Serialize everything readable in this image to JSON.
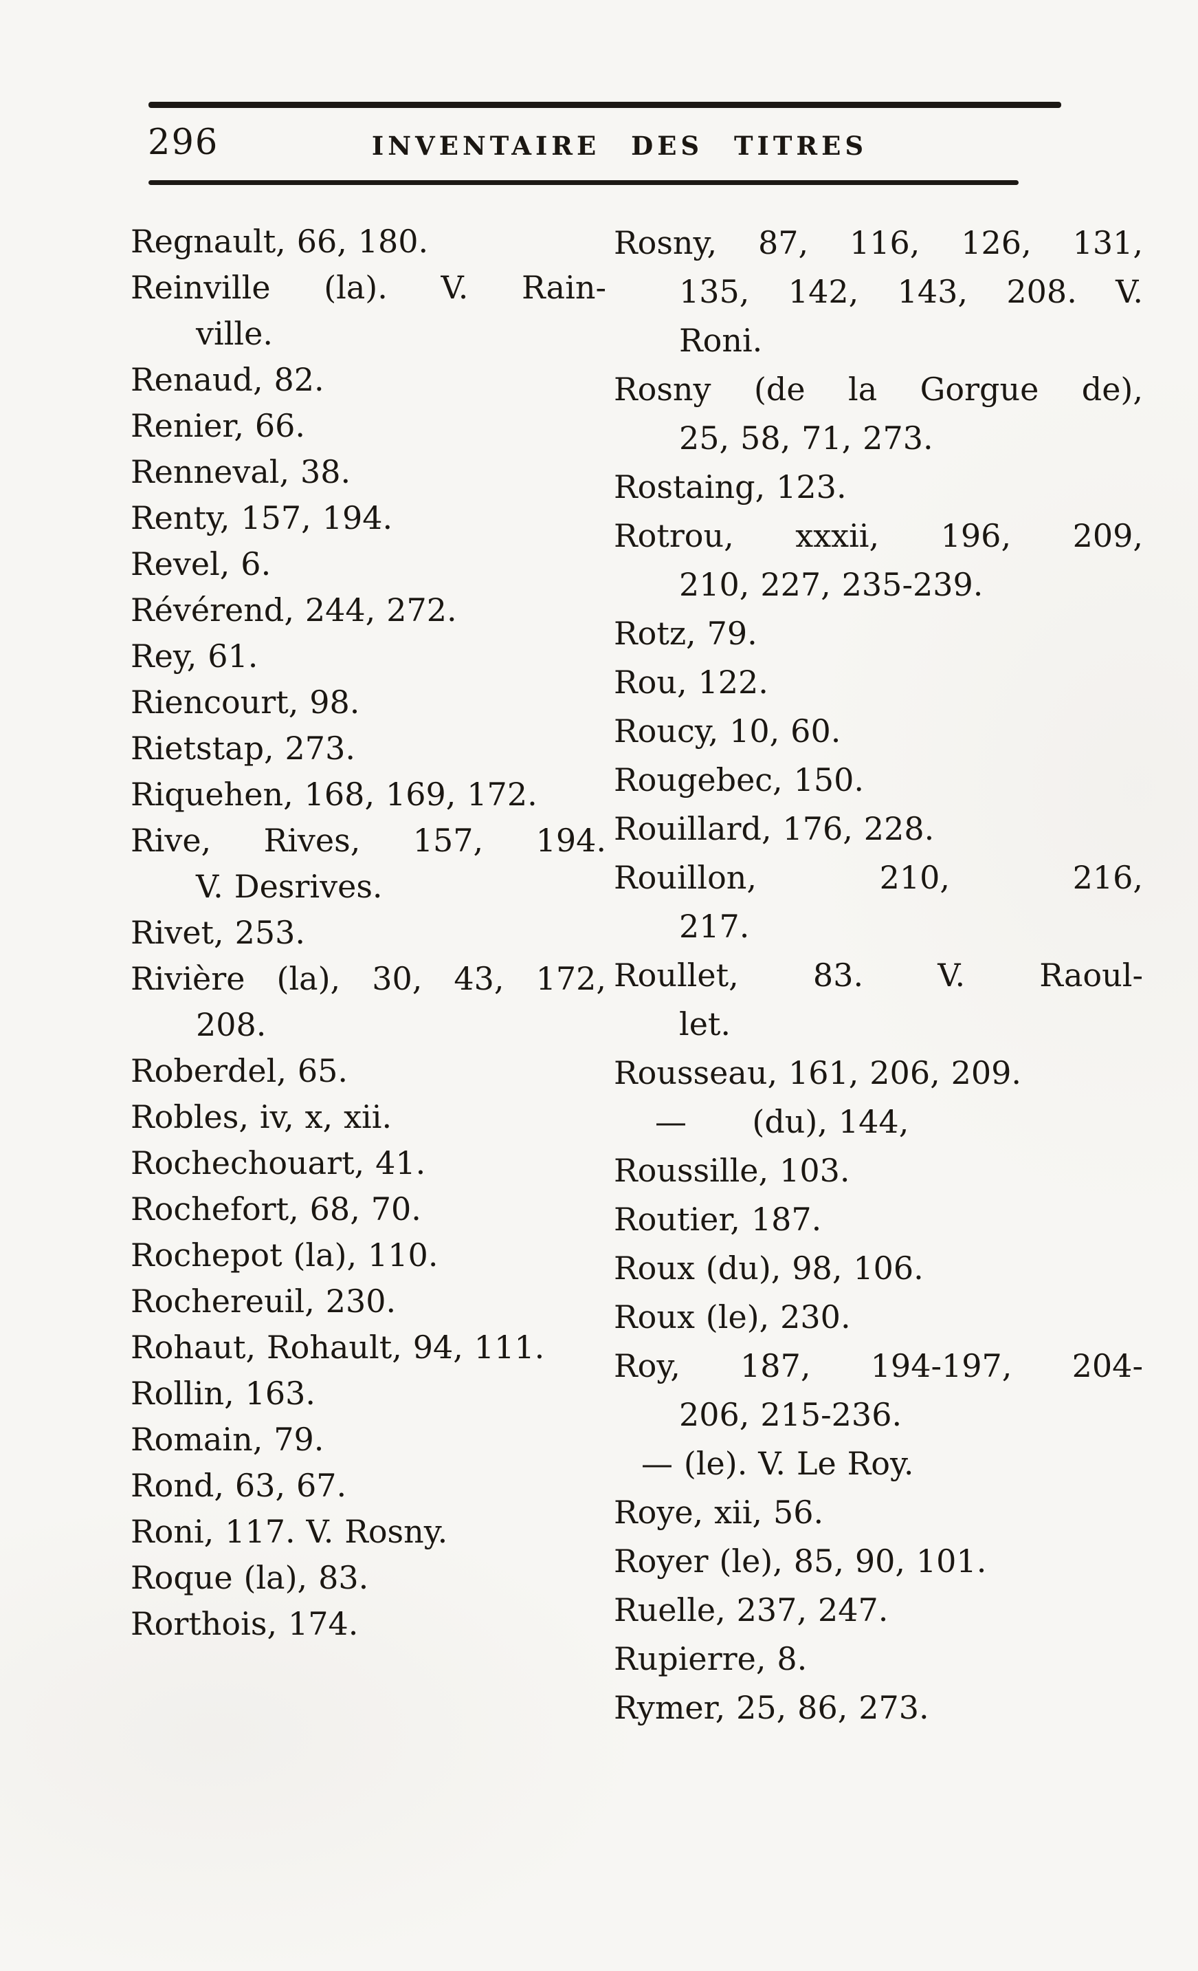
{
  "page": {
    "folio": "296",
    "running_head": "INVENTAIRE DES TITRES"
  },
  "colors": {
    "paper": "#f7f6f3",
    "ink": "#1b1712"
  },
  "columns": [
    {
      "side": "left",
      "entries": [
        {
          "lines": [
            {
              "text": "Regnault, 66, 180."
            }
          ]
        },
        {
          "lines": [
            {
              "text": "Reinville (la). V. Rain-",
              "justify": true
            },
            {
              "text": "ville.",
              "indent": true
            }
          ]
        },
        {
          "lines": [
            {
              "text": "Renaud, 82."
            }
          ]
        },
        {
          "lines": [
            {
              "text": "Renier, 66."
            }
          ]
        },
        {
          "lines": [
            {
              "text": "Renneval, 38."
            }
          ]
        },
        {
          "lines": [
            {
              "text": "Renty, 157, 194."
            }
          ]
        },
        {
          "lines": [
            {
              "text": "Revel, 6."
            }
          ]
        },
        {
          "lines": [
            {
              "text": "Révérend, 244, 272."
            }
          ]
        },
        {
          "lines": [
            {
              "text": "Rey, 61."
            }
          ]
        },
        {
          "lines": [
            {
              "text": "Riencourt, 98."
            }
          ]
        },
        {
          "lines": [
            {
              "text": "Rietstap, 273."
            }
          ]
        },
        {
          "lines": [
            {
              "text": "Riquehen, 168, 169, 172."
            }
          ]
        },
        {
          "lines": [
            {
              "text": "Rive, Rives, 157, 194.",
              "justify": true
            },
            {
              "text": "V. Desrives.",
              "indent": true
            }
          ]
        },
        {
          "lines": [
            {
              "text": "Rivet, 253."
            }
          ]
        },
        {
          "lines": [
            {
              "text": "Rivière (la), 30, 43, 172,",
              "justify": true
            },
            {
              "text": "208.",
              "indent": true
            }
          ]
        },
        {
          "lines": [
            {
              "text": "Roberdel, 65."
            }
          ]
        },
        {
          "lines": [
            {
              "text": "Robles, iv, x, xii."
            }
          ]
        },
        {
          "lines": [
            {
              "text": "Rochechouart, 41."
            }
          ]
        },
        {
          "lines": [
            {
              "text": "Rochefort, 68, 70."
            }
          ]
        },
        {
          "lines": [
            {
              "text": "Rochepot (la), 110."
            }
          ]
        },
        {
          "lines": [
            {
              "text": "Rochereuil, 230."
            }
          ]
        },
        {
          "lines": [
            {
              "text": "Rohaut, Rohault, 94, 111."
            }
          ]
        },
        {
          "lines": [
            {
              "text": "Rollin, 163."
            }
          ]
        },
        {
          "lines": [
            {
              "text": "Romain, 79."
            }
          ]
        },
        {
          "lines": [
            {
              "text": "Rond, 63, 67."
            }
          ]
        },
        {
          "lines": [
            {
              "text": "Roni, 117. V. Rosny."
            }
          ]
        },
        {
          "lines": [
            {
              "text": "Roque (la), 83."
            }
          ]
        },
        {
          "lines": [
            {
              "text": "Rorthois, 174."
            }
          ]
        }
      ]
    },
    {
      "side": "right",
      "entries": [
        {
          "lines": [
            {
              "text": "Rosny, 87, 116, 126, 131,",
              "justify": true
            },
            {
              "text": "135, 142, 143, 208. V.",
              "indent": true,
              "justify": true
            },
            {
              "text": "Roni.",
              "indent": true
            }
          ]
        },
        {
          "lines": [
            {
              "text": "Rosny (de la Gorgue de),",
              "justify": true
            },
            {
              "text": "25, 58, 71, 273.",
              "indent": true
            }
          ]
        },
        {
          "lines": [
            {
              "text": "Rostaing, 123."
            }
          ]
        },
        {
          "lines": [
            {
              "text": "Rotrou, xxxii, 196, 209,",
              "justify": true
            },
            {
              "text": "210, 227, 235-239.",
              "indent": true
            }
          ]
        },
        {
          "lines": [
            {
              "text": "Rotz, 79."
            }
          ]
        },
        {
          "lines": [
            {
              "text": "Rou, 122."
            }
          ]
        },
        {
          "lines": [
            {
              "text": "Roucy, 10, 60."
            }
          ]
        },
        {
          "lines": [
            {
              "text": "Rougebec, 150."
            }
          ]
        },
        {
          "lines": [
            {
              "text": "Rouillard, 176, 228."
            }
          ]
        },
        {
          "lines": [
            {
              "text": "Rouillon, 210, 216,",
              "justify": true
            },
            {
              "text": "217.",
              "indent": true
            }
          ]
        },
        {
          "lines": [
            {
              "text": "Roullet, 83. V. Raoul-",
              "justify": true
            },
            {
              "text": "let.",
              "indent": true
            }
          ]
        },
        {
          "lines": [
            {
              "text": "Rousseau, 161, 206, 209."
            }
          ]
        },
        {
          "lines": [
            {
              "text": "—      (du), 144,",
              "pad": 60
            }
          ]
        },
        {
          "lines": [
            {
              "text": "Roussille, 103."
            }
          ]
        },
        {
          "lines": [
            {
              "text": "Routier, 187."
            }
          ]
        },
        {
          "lines": [
            {
              "text": "Roux (du), 98, 106."
            }
          ]
        },
        {
          "lines": [
            {
              "text": "Roux (le), 230."
            }
          ]
        },
        {
          "lines": [
            {
              "text": "Roy, 187, 194-197, 204-",
              "justify": true
            },
            {
              "text": "206, 215-236.",
              "indent": true
            }
          ]
        },
        {
          "lines": [
            {
              "text": "— (le). V. Le Roy.",
              "pad": 40
            }
          ]
        },
        {
          "lines": [
            {
              "text": "Roye, xii, 56."
            }
          ]
        },
        {
          "lines": [
            {
              "text": "Royer (le), 85, 90, 101."
            }
          ]
        },
        {
          "lines": [
            {
              "text": "Ruelle, 237, 247."
            }
          ]
        },
        {
          "lines": [
            {
              "text": "Rupierre, 8."
            }
          ]
        },
        {
          "lines": [
            {
              "text": "Rymer, 25, 86, 273."
            }
          ]
        }
      ]
    }
  ]
}
